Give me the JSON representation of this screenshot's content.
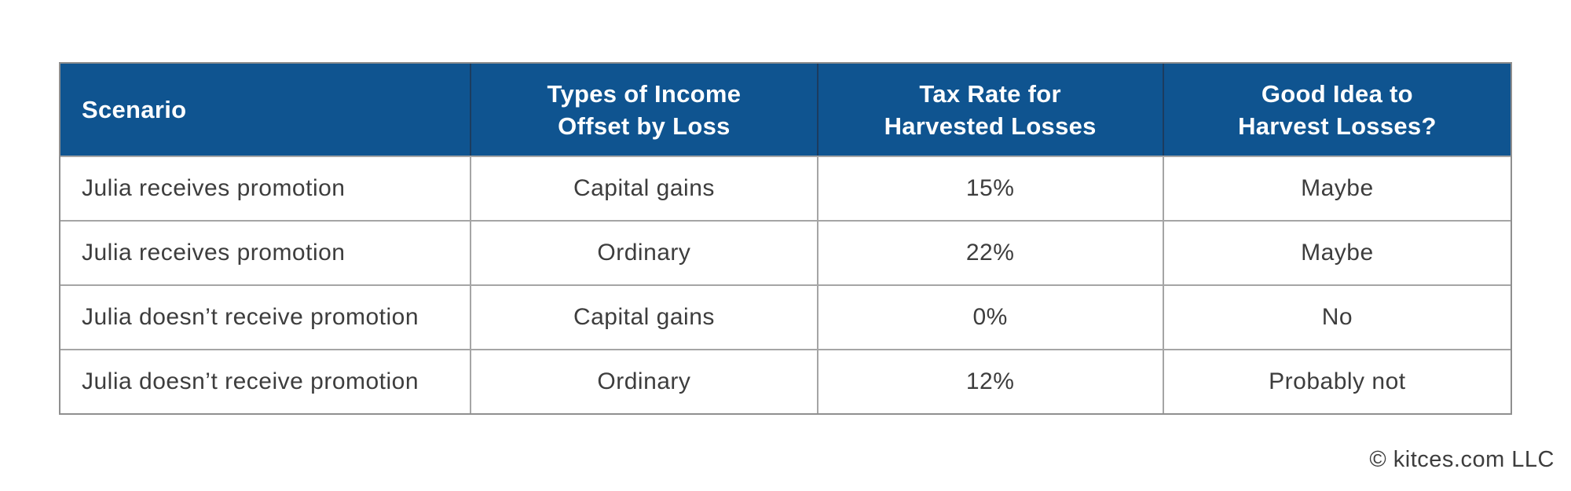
{
  "colors": {
    "header_bg": "#0f5490",
    "header_text": "#ffffff",
    "header_divider": "#1c3c5f",
    "grid_line": "#a5a5a5",
    "outer_border": "#8f8f8f",
    "body_text": "#3d3d3d"
  },
  "table": {
    "headers": [
      {
        "line1": "Scenario",
        "line2": ""
      },
      {
        "line1": "Types of Income",
        "line2": "Offset by Loss"
      },
      {
        "line1": "Tax Rate for",
        "line2": "Harvested Losses"
      },
      {
        "line1": "Good Idea to",
        "line2": "Harvest Losses?"
      }
    ],
    "rows": [
      {
        "scenario": "Julia receives promotion",
        "income_type": "Capital gains",
        "tax_rate": "15%",
        "good_idea": "Maybe"
      },
      {
        "scenario": "Julia receives promotion",
        "income_type": "Ordinary",
        "tax_rate": "22%",
        "good_idea": "Maybe"
      },
      {
        "scenario": "Julia doesn’t receive promotion",
        "income_type": "Capital gains",
        "tax_rate": "0%",
        "good_idea": "No"
      },
      {
        "scenario": "Julia doesn’t receive promotion",
        "income_type": "Ordinary",
        "tax_rate": "12%",
        "good_idea": "Probably not"
      }
    ]
  },
  "footer": {
    "copyright": "© kitces.com LLC"
  },
  "chart_data": {
    "type": "table",
    "columns": [
      "Scenario",
      "Types of Income Offset by Loss",
      "Tax Rate for Harvested Losses",
      "Good Idea to Harvest Losses?"
    ],
    "rows": [
      [
        "Julia receives promotion",
        "Capital gains",
        "15%",
        "Maybe"
      ],
      [
        "Julia receives promotion",
        "Ordinary",
        "22%",
        "Maybe"
      ],
      [
        "Julia doesn’t receive promotion",
        "Capital gains",
        "0%",
        "No"
      ],
      [
        "Julia doesn’t receive promotion",
        "Ordinary",
        "12%",
        "Probably not"
      ]
    ],
    "source": "© kitces.com LLC",
    "layout": {
      "header_style": "blue-band",
      "grid": true,
      "legend": "none"
    }
  }
}
